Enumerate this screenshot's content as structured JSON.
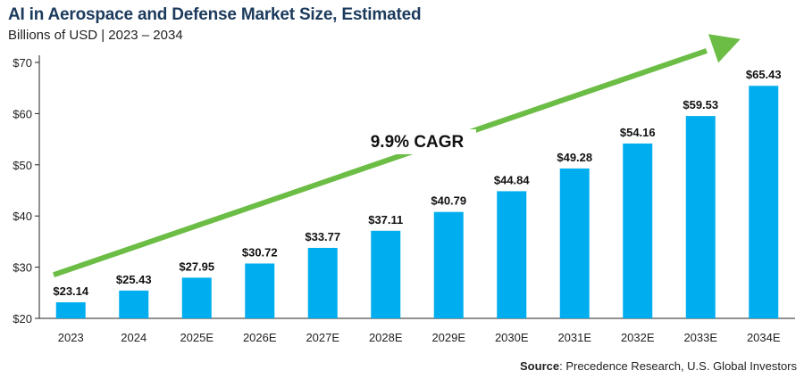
{
  "chart_data": {
    "type": "bar",
    "title": "AI in Aerospace and Defense Market Size, Estimated",
    "subtitle": "Billions of USD | 2023 – 2034",
    "categories": [
      "2023",
      "2024",
      "2025E",
      "2026E",
      "2027E",
      "2028E",
      "2029E",
      "2030E",
      "2031E",
      "2032E",
      "2033E",
      "2034E"
    ],
    "values": [
      23.14,
      25.43,
      27.95,
      30.72,
      33.77,
      37.11,
      40.79,
      44.84,
      49.28,
      54.16,
      59.53,
      65.43
    ],
    "data_labels": [
      "$23.14",
      "$25.43",
      "$27.95",
      "$30.72",
      "$33.77",
      "$37.11",
      "$40.79",
      "$44.84",
      "$49.28",
      "$54.16",
      "$59.53",
      "$65.43"
    ],
    "ylim": [
      20,
      70
    ],
    "yticks": [
      20,
      30,
      40,
      50,
      60,
      70
    ],
    "ytick_labels": [
      "$20",
      "$30",
      "$40",
      "$50",
      "$60",
      "$70"
    ],
    "xlabel": "",
    "ylabel": "",
    "grid": false,
    "annotation": "9.9% CAGR",
    "bar_color": "#00aeef",
    "arrow_color": "#6cbd45"
  },
  "source": {
    "label": "Source",
    "text": ": Precedence Research, U.S. Global Investors"
  }
}
